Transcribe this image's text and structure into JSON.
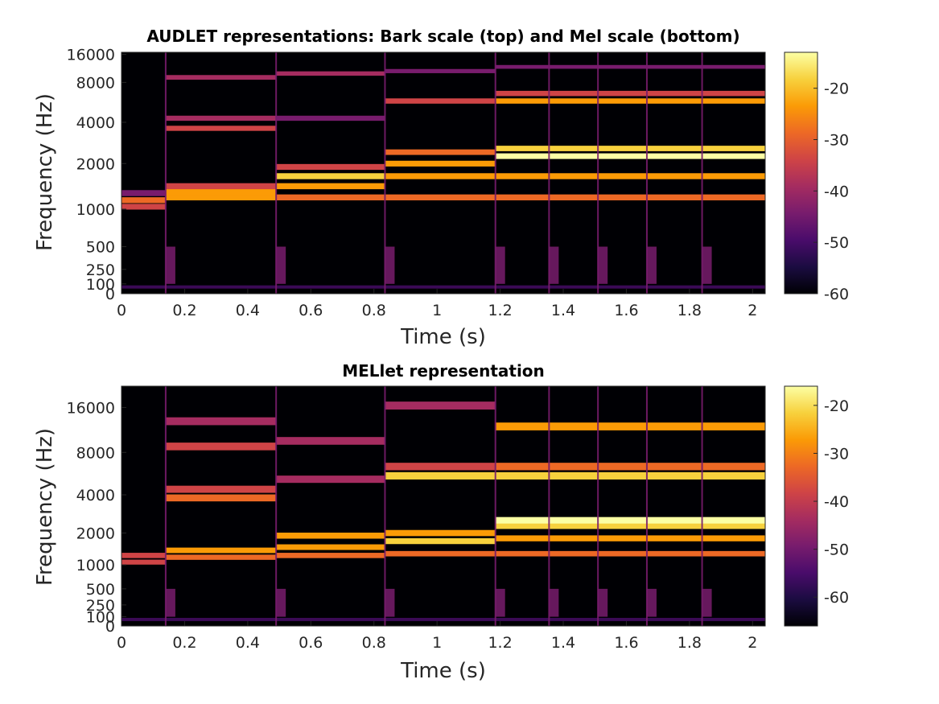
{
  "chart_data": [
    {
      "type": "heatmap",
      "title": "AUDLET representations: Bark scale (top) and Mel scale (bottom)",
      "xlabel": "Time (s)",
      "ylabel": "Frequency (Hz)",
      "xlim": [
        0,
        2.04
      ],
      "x_ticks": [
        0,
        0.2,
        0.4,
        0.6,
        0.8,
        1,
        1.2,
        1.4,
        1.6,
        1.8,
        2
      ],
      "y_ticks": [
        0,
        100,
        250,
        500,
        1000,
        2000,
        4000,
        8000,
        16000
      ],
      "y_scale": "bark",
      "clim": [
        -60,
        -13
      ],
      "colorbar_ticks": [
        -20,
        -30,
        -40,
        -50,
        -60
      ],
      "colormap": [
        "#000004",
        "#1b0c41",
        "#4a0c6b",
        "#781c6d",
        "#a52c60",
        "#cf4446",
        "#ed6925",
        "#fb9b06",
        "#f7d13d",
        "#fcffa4"
      ],
      "note_onsets": [
        0,
        0.14,
        0.49,
        0.835,
        1.185,
        1.355,
        1.51,
        1.665,
        1.84
      ],
      "events": [
        {
          "t": [
            0,
            0.14
          ],
          "f": [
            1040,
            1150,
            1280
          ],
          "level": [
            -34,
            -30,
            -44
          ]
        },
        {
          "t": [
            0.14,
            0.49
          ],
          "f": [
            1200,
            1300,
            1420,
            3600,
            4300,
            8800
          ],
          "level": [
            -26,
            -24,
            -32,
            -34,
            -40,
            -38
          ]
        },
        {
          "t": [
            0.49,
            0.835
          ],
          "f": [
            1200,
            1420,
            1650,
            1900,
            4300,
            9500
          ],
          "level": [
            -28,
            -26,
            -20,
            -34,
            -46,
            -40
          ]
        },
        {
          "t": [
            0.835,
            1.185
          ],
          "f": [
            1200,
            1650,
            2000,
            2400,
            5800,
            10000
          ],
          "level": [
            -28,
            -24,
            -22,
            -30,
            -34,
            -44
          ]
        },
        {
          "t": [
            1.185,
            2.04
          ],
          "f": [
            1200,
            1650,
            2250,
            2550,
            5800,
            6600,
            11000
          ],
          "level": [
            -28,
            -26,
            -14,
            -18,
            -26,
            -34,
            -42
          ]
        }
      ]
    },
    {
      "type": "heatmap",
      "title": "MELlet representation",
      "xlabel": "Time (s)",
      "ylabel": "Frequency (Hz)",
      "xlim": [
        0,
        2.04
      ],
      "x_ticks": [
        0,
        0.2,
        0.4,
        0.6,
        0.8,
        1,
        1.2,
        1.4,
        1.6,
        1.8,
        2
      ],
      "y_ticks": [
        0,
        100,
        250,
        500,
        1000,
        2000,
        4000,
        8000,
        16000
      ],
      "y_scale": "mel",
      "clim": [
        -66,
        -16
      ],
      "colorbar_ticks": [
        -20,
        -30,
        -40,
        -50,
        -60
      ],
      "colormap": [
        "#000004",
        "#1b0c41",
        "#4a0c6b",
        "#781c6d",
        "#a52c60",
        "#cf4446",
        "#ed6925",
        "#fb9b06",
        "#f7d13d",
        "#fcffa4"
      ],
      "note_onsets": [
        0,
        0.14,
        0.49,
        0.835,
        1.185,
        1.355,
        1.51,
        1.665,
        1.84
      ],
      "events": [
        {
          "t": [
            0,
            0.14
          ],
          "f": [
            1070,
            1250
          ],
          "level": [
            -40,
            -36
          ]
        },
        {
          "t": [
            0.14,
            0.49
          ],
          "f": [
            1200,
            1400,
            3800,
            4400,
            8800,
            13000
          ],
          "level": [
            -30,
            -26,
            -34,
            -38,
            -40,
            -44
          ]
        },
        {
          "t": [
            0.49,
            0.835
          ],
          "f": [
            1250,
            1500,
            1900,
            5200,
            9600
          ],
          "level": [
            -30,
            -28,
            -26,
            -44,
            -42
          ]
        },
        {
          "t": [
            0.835,
            1.185
          ],
          "f": [
            1300,
            1700,
            2000,
            5500,
            6400,
            16500
          ],
          "level": [
            -30,
            -24,
            -26,
            -24,
            -36,
            -46
          ]
        },
        {
          "t": [
            1.185,
            2.04
          ],
          "f": [
            1300,
            1800,
            2300,
            2550,
            5500,
            6400,
            12000
          ],
          "level": [
            -30,
            -28,
            -22,
            -17,
            -24,
            -30,
            -26
          ]
        }
      ]
    }
  ]
}
